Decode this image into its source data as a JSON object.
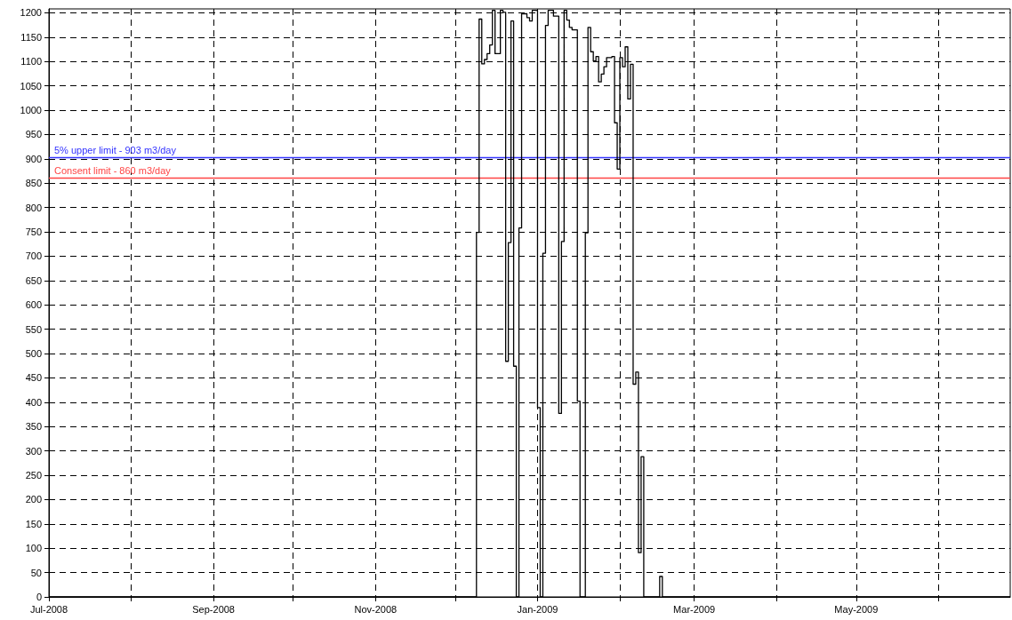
{
  "chart_data": {
    "type": "step",
    "x": [
      "2008-07-01",
      "2008-12-09",
      "2008-12-10",
      "2008-12-11",
      "2008-12-12",
      "2008-12-13",
      "2008-12-14",
      "2008-12-15",
      "2008-12-16",
      "2008-12-18",
      "2008-12-19",
      "2008-12-20",
      "2008-12-21",
      "2008-12-22",
      "2008-12-23",
      "2008-12-24",
      "2008-12-25",
      "2008-12-26",
      "2008-12-28",
      "2008-12-29",
      "2008-12-30",
      "2009-01-01",
      "2009-01-02",
      "2009-01-03",
      "2009-01-04",
      "2009-01-05",
      "2009-01-07",
      "2009-01-09",
      "2009-01-10",
      "2009-01-11",
      "2009-01-12",
      "2009-01-13",
      "2009-01-14",
      "2009-01-16",
      "2009-01-17",
      "2009-01-19",
      "2009-01-20",
      "2009-01-21",
      "2009-01-22",
      "2009-01-23",
      "2009-01-24",
      "2009-01-25",
      "2009-01-26",
      "2009-01-27",
      "2009-01-29",
      "2009-01-30",
      "2009-01-31",
      "2009-02-01",
      "2009-02-02",
      "2009-02-03",
      "2009-02-04",
      "2009-02-05",
      "2009-02-06",
      "2009-02-07",
      "2009-02-08",
      "2009-02-09",
      "2009-02-10",
      "2009-02-16",
      "2009-02-17",
      "2009-06-28"
    ],
    "series": [
      {
        "color": "#000000",
        "values": [
          0,
          749,
          1187,
          1095,
          1104,
          1116,
          1134,
          1205,
          1116,
          1205,
          1201,
          484,
          728,
          1183,
          474,
          0,
          758,
          1198,
          1190,
          1183,
          1205,
          389,
          0,
          706,
          1174,
          1205,
          1193,
          377,
          730,
          1205,
          1185,
          1170,
          1165,
          402,
          0,
          748,
          1170,
          1120,
          1101,
          1110,
          1058,
          1074,
          1089,
          1108,
          1110,
          974,
          879,
          1108,
          1089,
          1130,
          1023,
          1094,
          437,
          462,
          91,
          288,
          0,
          42,
          0,
          0
        ]
      }
    ],
    "xlim": [
      "2008-07-01",
      "2009-06-28"
    ],
    "xticks": [
      {
        "value": "2008-07",
        "label": "Jul-2008"
      },
      {
        "value": "2008-08",
        "label": null
      },
      {
        "value": "2008-09",
        "label": "Sep-2008"
      },
      {
        "value": "2008-10",
        "label": null
      },
      {
        "value": "2008-11",
        "label": "Nov-2008"
      },
      {
        "value": "2008-12",
        "label": null
      },
      {
        "value": "2009-01",
        "label": "Jan-2009"
      },
      {
        "value": "2009-02",
        "label": null
      },
      {
        "value": "2009-03",
        "label": "Mar-2009"
      },
      {
        "value": "2009-04",
        "label": null
      },
      {
        "value": "2009-05",
        "label": "May-2009"
      },
      {
        "value": "2009-06",
        "label": null
      }
    ],
    "ylim": [
      0,
      1208
    ],
    "yticks": [
      0,
      50,
      100,
      150,
      200,
      250,
      300,
      350,
      400,
      450,
      500,
      550,
      600,
      650,
      700,
      750,
      800,
      850,
      900,
      950,
      1000,
      1050,
      1100,
      1150,
      1200
    ],
    "ref_lines": [
      {
        "axis": "y",
        "value": 903,
        "label": "5% upper limit - 903 m3/day",
        "color": "#3333ff"
      },
      {
        "axis": "y",
        "value": 860,
        "label": "Consent limit - 860 m3/day",
        "color": "#ff4444"
      }
    ],
    "grid": true,
    "line_style": "solid",
    "marker": "none"
  }
}
